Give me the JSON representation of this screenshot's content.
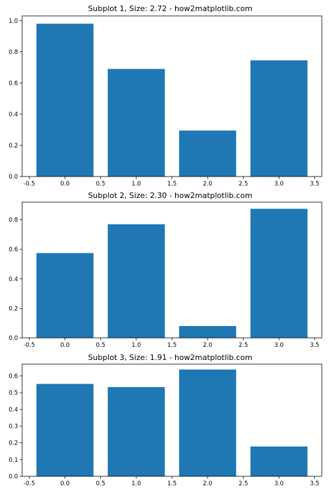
{
  "chart_data": [
    {
      "type": "bar",
      "title": "Subplot 1, Size: 2.72 - how2matplotlib.com",
      "x": [
        0,
        1,
        2,
        3
      ],
      "values": [
        0.98,
        0.69,
        0.295,
        0.745
      ],
      "bar_width": 0.8,
      "xlim": [
        -0.6,
        3.6
      ],
      "ylim": [
        0,
        1.03
      ],
      "xticks": [
        -0.5,
        0.0,
        0.5,
        1.0,
        1.5,
        2.0,
        2.5,
        3.0,
        3.5
      ],
      "xtick_labels": [
        "-0.5",
        "0.0",
        "0.5",
        "1.0",
        "1.5",
        "2.0",
        "2.5",
        "3.0",
        "3.5"
      ],
      "yticks": [
        0.0,
        0.2,
        0.4,
        0.6,
        0.8,
        1.0
      ],
      "ytick_labels": [
        "0.0",
        "0.2",
        "0.4",
        "0.6",
        "0.8",
        "1.0"
      ],
      "xlabel": "",
      "ylabel": "",
      "grid": false,
      "color": "#1f77b4"
    },
    {
      "type": "bar",
      "title": "Subplot 2, Size: 2.30 - how2matplotlib.com",
      "x": [
        0,
        1,
        2,
        3
      ],
      "values": [
        0.575,
        0.77,
        0.08,
        0.875
      ],
      "bar_width": 0.8,
      "xlim": [
        -0.6,
        3.6
      ],
      "ylim": [
        0,
        0.92
      ],
      "xticks": [
        -0.5,
        0.0,
        0.5,
        1.0,
        1.5,
        2.0,
        2.5,
        3.0,
        3.5
      ],
      "xtick_labels": [
        "-0.5",
        "0.0",
        "0.5",
        "1.0",
        "1.5",
        "2.0",
        "2.5",
        "3.0",
        "3.5"
      ],
      "yticks": [
        0.0,
        0.2,
        0.4,
        0.6,
        0.8
      ],
      "ytick_labels": [
        "0.0",
        "0.2",
        "0.4",
        "0.6",
        "0.8"
      ],
      "xlabel": "",
      "ylabel": "",
      "grid": false,
      "color": "#1f77b4"
    },
    {
      "type": "bar",
      "title": "Subplot 3, Size: 1.91 - how2matplotlib.com",
      "x": [
        0,
        1,
        2,
        3
      ],
      "values": [
        0.552,
        0.533,
        0.638,
        0.178
      ],
      "bar_width": 0.8,
      "xlim": [
        -0.6,
        3.6
      ],
      "ylim": [
        0,
        0.67
      ],
      "xticks": [
        -0.5,
        0.0,
        0.5,
        1.0,
        1.5,
        2.0,
        2.5,
        3.0,
        3.5
      ],
      "xtick_labels": [
        "-0.5",
        "0.0",
        "0.5",
        "1.0",
        "1.5",
        "2.0",
        "2.5",
        "3.0",
        "3.5"
      ],
      "yticks": [
        0.0,
        0.1,
        0.2,
        0.3,
        0.4,
        0.5,
        0.6
      ],
      "ytick_labels": [
        "0.0",
        "0.1",
        "0.2",
        "0.3",
        "0.4",
        "0.5",
        "0.6"
      ],
      "xlabel": "",
      "ylabel": "",
      "grid": false,
      "color": "#1f77b4"
    }
  ]
}
